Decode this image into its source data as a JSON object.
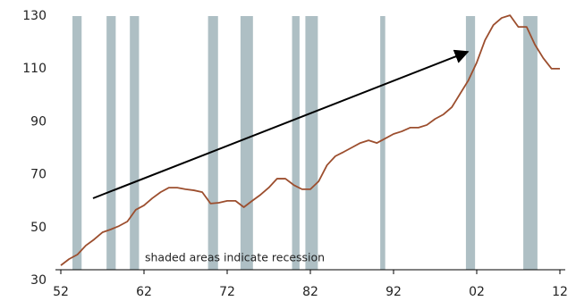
{
  "chart_data": {
    "type": "line",
    "annotation": "shaded areas indicate recession",
    "color": "#9c4e2e",
    "recession_color": "#aebfc4",
    "x": [
      1952,
      1953,
      1954,
      1955,
      1956,
      1957,
      1958,
      1959,
      1960,
      1961,
      1962,
      1963,
      1964,
      1965,
      1966,
      1967,
      1968,
      1969,
      1970,
      1971,
      1972,
      1973,
      1974,
      1975,
      1976,
      1977,
      1978,
      1979,
      1980,
      1981,
      1982,
      1983,
      1984,
      1985,
      1986,
      1987,
      1988,
      1989,
      1990,
      1991,
      1992,
      1993,
      1994,
      1995,
      1996,
      1997,
      1998,
      1999,
      2000,
      2001,
      2002,
      2003,
      2004,
      2005,
      2006,
      2007,
      2008,
      2009,
      2010,
      2011,
      2012
    ],
    "values": [
      35.7,
      38.1,
      39.8,
      43.2,
      45.5,
      48.2,
      49.3,
      50.6,
      52.3,
      56.7,
      58.4,
      61.1,
      63.4,
      65.1,
      65.1,
      64.5,
      64.1,
      63.4,
      59.1,
      59.4,
      60.1,
      60.1,
      57.7,
      60.1,
      62.4,
      65.1,
      68.5,
      68.5,
      66.1,
      64.5,
      64.5,
      67.5,
      73.6,
      77,
      78.6,
      80.3,
      82,
      83,
      82,
      83.7,
      85.4,
      86.4,
      87.8,
      87.8,
      88.8,
      91.1,
      92.8,
      95.5,
      100.6,
      105.7,
      112.4,
      120.9,
      126.6,
      129.3,
      130.3,
      125.9,
      125.9,
      119.2,
      114.1,
      110.1,
      110.1
    ],
    "recessions": [
      [
        1953.4,
        1954.5
      ],
      [
        1957.5,
        1958.6
      ],
      [
        1960.3,
        1961.4
      ],
      [
        1969.7,
        1970.9
      ],
      [
        1973.6,
        1975.1
      ],
      [
        1979.8,
        1980.7
      ],
      [
        1981.4,
        1982.9
      ],
      [
        1990.4,
        1991.0
      ],
      [
        2000.7,
        2001.8
      ],
      [
        2007.6,
        2009.3
      ]
    ],
    "xlim": [
      1952,
      2012
    ],
    "xticks": [
      {
        "value": 1952,
        "label": "52"
      },
      {
        "value": 1962,
        "label": "62"
      },
      {
        "value": 1972,
        "label": "72"
      },
      {
        "value": 1982,
        "label": "82"
      },
      {
        "value": 1992,
        "label": "92"
      },
      {
        "value": 2002,
        "label": "02"
      },
      {
        "value": 2012,
        "label": "12"
      }
    ],
    "ylim": [
      30,
      130
    ],
    "yticks": [
      30,
      50,
      70,
      90,
      110,
      130
    ],
    "grid": false
  }
}
